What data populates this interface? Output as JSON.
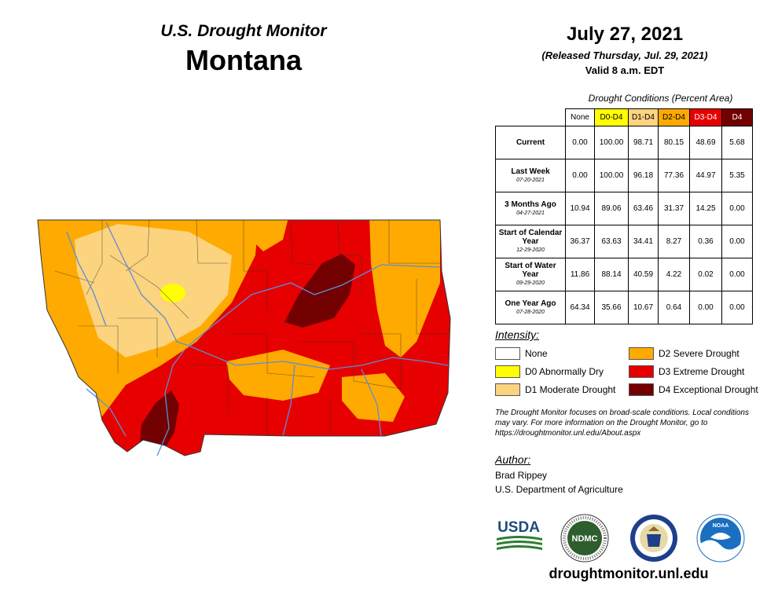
{
  "header": {
    "title": "U.S. Drought Monitor",
    "state": "Montana",
    "date": "July 27, 2021",
    "released": "(Released Thursday, Jul. 29, 2021)",
    "valid": "Valid 8 a.m. EDT"
  },
  "table": {
    "caption": "Drought Conditions (Percent Area)",
    "columns": [
      "None",
      "D0-D4",
      "D1-D4",
      "D2-D4",
      "D3-D4",
      "D4"
    ],
    "rows": [
      {
        "label": "Current",
        "date": "",
        "values": [
          "0.00",
          "100.00",
          "98.71",
          "80.15",
          "48.69",
          "5.68"
        ]
      },
      {
        "label": "Last Week",
        "date": "07-20-2021",
        "values": [
          "0.00",
          "100.00",
          "96.18",
          "77.36",
          "44.97",
          "5.35"
        ]
      },
      {
        "label": "3 Months Ago",
        "date": "04-27-2021",
        "values": [
          "10.94",
          "89.06",
          "63.46",
          "31.37",
          "14.25",
          "0.00"
        ]
      },
      {
        "label": "Start of Calendar Year",
        "date": "12-29-2020",
        "values": [
          "36.37",
          "63.63",
          "34.41",
          "8.27",
          "0.36",
          "0.00"
        ]
      },
      {
        "label": "Start of Water Year",
        "date": "09-29-2020",
        "values": [
          "11.86",
          "88.14",
          "40.59",
          "4.22",
          "0.02",
          "0.00"
        ]
      },
      {
        "label": "One Year Ago",
        "date": "07-28-2020",
        "values": [
          "64.34",
          "35.66",
          "10.67",
          "0.64",
          "0.00",
          "0.00"
        ]
      }
    ]
  },
  "legend": {
    "title": "Intensity:",
    "items": [
      {
        "label": "None",
        "color": "#ffffff"
      },
      {
        "label": "D0 Abnormally Dry",
        "color": "#ffff00"
      },
      {
        "label": "D1 Moderate Drought",
        "color": "#fcd37f"
      },
      {
        "label": "D2 Severe Drought",
        "color": "#ffaa00"
      },
      {
        "label": "D3 Extreme Drought",
        "color": "#e60000"
      },
      {
        "label": "D4 Exceptional Drought",
        "color": "#730000"
      }
    ]
  },
  "note": "The Drought Monitor focuses on broad-scale conditions. Local conditions may vary. For more information on the Drought Monitor, go to https://droughtmonitor.unl.edu/About.aspx",
  "author": {
    "title": "Author:",
    "name": "Brad Rippey",
    "org": "U.S. Department of Agriculture"
  },
  "logos": {
    "usda": "USDA",
    "ndmc": "NDMC",
    "commerce": "commerce-seal-icon",
    "noaa": "NOAA"
  },
  "url": "droughtmonitor.unl.edu"
}
